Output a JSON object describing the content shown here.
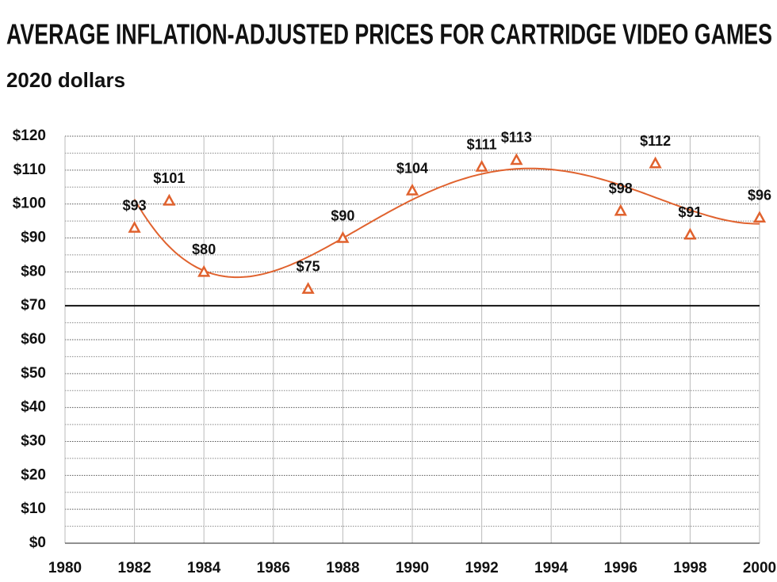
{
  "chart_data": {
    "type": "scatter",
    "title": "AVERAGE INFLATION-ADJUSTED PRICES FOR CARTRIDGE VIDEO GAMES",
    "subtitle": "2020 dollars",
    "x": [
      1982,
      1983,
      1984,
      1987,
      1988,
      1990,
      1992,
      1993,
      1996,
      1997,
      1998,
      2000
    ],
    "values": [
      93,
      101,
      80,
      75,
      90,
      104,
      111,
      113,
      98,
      112,
      91,
      96
    ],
    "value_labels": [
      "$93",
      "$101",
      "$80",
      "$75",
      "$90",
      "$104",
      "$111",
      "$113",
      "$98",
      "$112",
      "$91",
      "$96"
    ],
    "color": "#e0622e",
    "marker": "triangle",
    "trendline": {
      "type": "polynomial",
      "order": 4
    },
    "reference_line": 70,
    "xlim": [
      1980,
      2000
    ],
    "xticks": [
      1980,
      1982,
      1984,
      1986,
      1988,
      1990,
      1992,
      1994,
      1996,
      1998,
      2000
    ],
    "ylim": [
      0,
      120
    ],
    "yticks": [
      {
        "value": 0,
        "label": "$0"
      },
      {
        "value": 10,
        "label": "$10"
      },
      {
        "value": 20,
        "label": "$20"
      },
      {
        "value": 30,
        "label": "$30"
      },
      {
        "value": 40,
        "label": "$40"
      },
      {
        "value": 50,
        "label": "$50"
      },
      {
        "value": 60,
        "label": "$60"
      },
      {
        "value": 70,
        "label": "$70"
      },
      {
        "value": 80,
        "label": "$80"
      },
      {
        "value": 90,
        "label": "$90"
      },
      {
        "value": 100,
        "label": "$100"
      },
      {
        "value": 110,
        "label": "$110"
      },
      {
        "value": 120,
        "label": "$120"
      }
    ],
    "grid": true
  }
}
